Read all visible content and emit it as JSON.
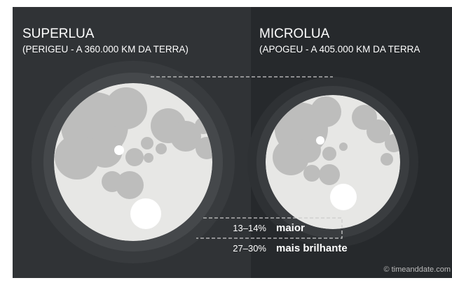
{
  "left": {
    "title": "SUPERLUA",
    "subtitle": "(PERIGEU - A 360.000 KM DA TERRA)"
  },
  "right": {
    "title": "MICROLUA",
    "subtitle": "(APOGEU - A 405.000 KM DA TERRA"
  },
  "comparisons": [
    {
      "value": "13–14%",
      "label": "maior"
    },
    {
      "value": "27–30%",
      "label": "mais brilhante"
    }
  ],
  "credit": "© timeanddate.com"
}
